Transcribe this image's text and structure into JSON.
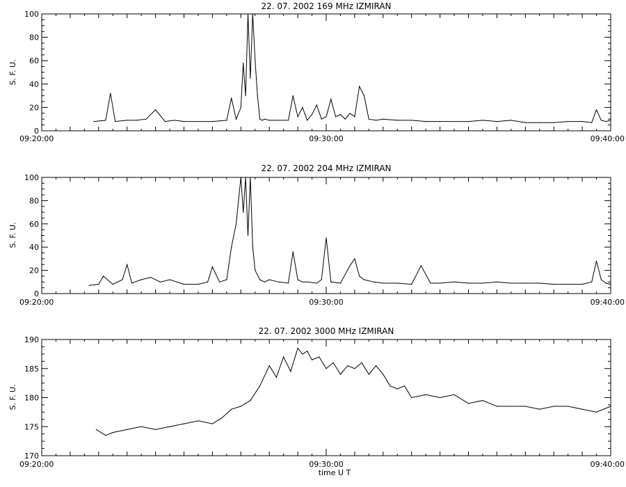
{
  "chart_data": [
    {
      "type": "line",
      "title": "22.  07.  2002    169  MHz    IZMIRAN",
      "ylabel": "S.  F.  U.",
      "xlabel": "",
      "xlim": [
        "09:20:00",
        "09:40:00"
      ],
      "ylim": [
        0,
        100
      ],
      "yticks": [
        0,
        20,
        40,
        60,
        80,
        100
      ],
      "xticks": [
        "09:20:00",
        "09:30:00",
        "09:40:00"
      ],
      "grid": false,
      "series": [
        {
          "x": [
            "09:21:50",
            "09:22:15",
            "09:22:25",
            "09:22:35",
            "09:23:00",
            "09:23:20",
            "09:23:40",
            "09:24:00",
            "09:24:20",
            "09:24:40",
            "09:25:00",
            "09:25:30",
            "09:26:00",
            "09:26:30",
            "09:26:40",
            "09:26:50",
            "09:27:00",
            "09:27:05",
            "09:27:10",
            "09:27:15",
            "09:27:20",
            "09:27:25",
            "09:27:30",
            "09:27:35",
            "09:27:40",
            "09:27:45",
            "09:27:50",
            "09:28:00",
            "09:28:20",
            "09:28:40",
            "09:28:50",
            "09:29:00",
            "09:29:10",
            "09:29:20",
            "09:29:30",
            "09:29:40",
            "09:29:50",
            "09:30:00",
            "09:30:10",
            "09:30:20",
            "09:30:30",
            "09:30:40",
            "09:30:50",
            "09:31:00",
            "09:31:10",
            "09:31:20",
            "09:31:30",
            "09:31:45",
            "09:32:00",
            "09:32:30",
            "09:33:00",
            "09:33:30",
            "09:34:00",
            "09:34:30",
            "09:35:00",
            "09:35:30",
            "09:36:00",
            "09:36:30",
            "09:37:00",
            "09:37:30",
            "09:38:00",
            "09:38:30",
            "09:39:00",
            "09:39:20",
            "09:39:30",
            "09:39:40",
            "09:39:50",
            "09:40:00"
          ],
          "y": [
            8,
            9,
            32,
            8,
            9,
            9,
            10,
            18,
            8,
            9,
            8,
            8,
            8,
            9,
            28,
            10,
            20,
            58,
            30,
            100,
            45,
            100,
            60,
            30,
            10,
            9,
            10,
            9,
            9,
            9,
            30,
            12,
            20,
            9,
            14,
            22,
            10,
            12,
            27,
            12,
            14,
            10,
            15,
            12,
            38,
            30,
            10,
            9,
            10,
            9,
            9,
            8,
            8,
            8,
            8,
            9,
            8,
            9,
            7,
            7,
            7,
            8,
            8,
            7,
            18,
            9,
            8,
            9
          ]
        }
      ]
    },
    {
      "type": "line",
      "title": "22.  07.  2002    204  MHz    IZMIRAN",
      "ylabel": "S.  F.  U.",
      "xlabel": "",
      "xlim": [
        "09:20:00",
        "09:40:00"
      ],
      "ylim": [
        0,
        100
      ],
      "yticks": [
        0,
        20,
        40,
        60,
        80,
        100
      ],
      "xticks": [
        "09:20:00",
        "09:30:00",
        "09:40:00"
      ],
      "grid": false,
      "series": [
        {
          "x": [
            "09:21:40",
            "09:22:00",
            "09:22:10",
            "09:22:30",
            "09:22:50",
            "09:23:00",
            "09:23:10",
            "09:23:30",
            "09:23:50",
            "09:24:10",
            "09:24:30",
            "09:25:00",
            "09:25:30",
            "09:25:50",
            "09:26:00",
            "09:26:15",
            "09:26:30",
            "09:26:40",
            "09:26:50",
            "09:27:00",
            "09:27:05",
            "09:27:10",
            "09:27:15",
            "09:27:20",
            "09:27:25",
            "09:27:30",
            "09:27:40",
            "09:27:50",
            "09:28:00",
            "09:28:20",
            "09:28:40",
            "09:28:50",
            "09:29:00",
            "09:29:10",
            "09:29:20",
            "09:29:40",
            "09:29:50",
            "09:30:00",
            "09:30:10",
            "09:30:30",
            "09:30:50",
            "09:31:00",
            "09:31:10",
            "09:31:20",
            "09:31:40",
            "09:32:00",
            "09:32:30",
            "09:33:00",
            "09:33:20",
            "09:33:40",
            "09:34:00",
            "09:34:30",
            "09:35:00",
            "09:35:30",
            "09:36:00",
            "09:36:30",
            "09:37:00",
            "09:37:30",
            "09:38:00",
            "09:38:30",
            "09:39:00",
            "09:39:20",
            "09:39:30",
            "09:39:40",
            "09:39:50",
            "09:40:00"
          ],
          "y": [
            7,
            8,
            15,
            8,
            12,
            25,
            9,
            12,
            14,
            10,
            12,
            8,
            8,
            10,
            23,
            10,
            12,
            40,
            60,
            100,
            70,
            100,
            50,
            100,
            40,
            20,
            12,
            10,
            12,
            10,
            9,
            36,
            12,
            10,
            10,
            9,
            12,
            48,
            10,
            9,
            24,
            30,
            15,
            12,
            10,
            9,
            9,
            8,
            24,
            9,
            9,
            10,
            9,
            9,
            10,
            9,
            9,
            9,
            8,
            8,
            8,
            10,
            28,
            12,
            9,
            8
          ]
        }
      ]
    },
    {
      "type": "line",
      "title": "22.  07.  2002    3000  MHz    IZMIRAN",
      "ylabel": "S.  F.  U.",
      "xlabel": "time   U T",
      "xlim": [
        "09:20:00",
        "09:40:00"
      ],
      "ylim": [
        170,
        190
      ],
      "yticks": [
        170,
        175,
        180,
        185,
        190
      ],
      "xticks": [
        "09:20:00",
        "09:30:00",
        "09:40:00"
      ],
      "grid": false,
      "series": [
        {
          "x": [
            "09:21:55",
            "09:22:15",
            "09:22:30",
            "09:23:00",
            "09:23:30",
            "09:24:00",
            "09:24:30",
            "09:25:00",
            "09:25:30",
            "09:26:00",
            "09:26:20",
            "09:26:40",
            "09:27:00",
            "09:27:20",
            "09:27:40",
            "09:28:00",
            "09:28:15",
            "09:28:30",
            "09:28:45",
            "09:29:00",
            "09:29:10",
            "09:29:20",
            "09:29:30",
            "09:29:45",
            "09:30:00",
            "09:30:15",
            "09:30:30",
            "09:30:45",
            "09:31:00",
            "09:31:15",
            "09:31:30",
            "09:31:45",
            "09:32:00",
            "09:32:15",
            "09:32:30",
            "09:32:45",
            "09:33:00",
            "09:33:30",
            "09:34:00",
            "09:34:30",
            "09:35:00",
            "09:35:30",
            "09:36:00",
            "09:36:30",
            "09:37:00",
            "09:37:30",
            "09:38:00",
            "09:38:30",
            "09:39:00",
            "09:39:30",
            "09:40:00"
          ],
          "y": [
            174.5,
            173.5,
            174.0,
            174.5,
            175.0,
            174.5,
            175.0,
            175.5,
            176.0,
            175.5,
            176.5,
            178.0,
            178.5,
            179.5,
            182.0,
            185.5,
            183.5,
            187.0,
            184.5,
            188.5,
            187.5,
            188.0,
            186.5,
            187.0,
            185.0,
            186.0,
            184.0,
            185.5,
            185.0,
            186.0,
            184.0,
            185.5,
            184.0,
            182.0,
            181.5,
            182.0,
            180.0,
            180.5,
            180.0,
            180.5,
            179.0,
            179.5,
            178.5,
            178.5,
            178.5,
            178.0,
            178.5,
            178.5,
            178.0,
            177.5,
            178.5
          ]
        }
      ]
    }
  ]
}
